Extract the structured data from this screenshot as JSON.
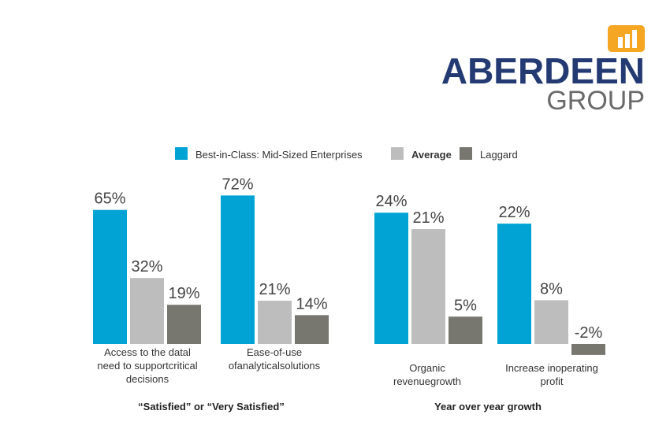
{
  "logo": {
    "name": "ABERDEEN",
    "sub": "GROUP",
    "icon": "bar-chart-icon",
    "text_color": "#243a73",
    "sub_color": "#6a6a6a",
    "accent": "#f5a623"
  },
  "legend": {
    "placement": "top-center",
    "items": [
      {
        "label": "Best-in-Class: Mid-Sized Enterprises",
        "color": "#00a3d4"
      },
      {
        "label": "Average",
        "color": "#bdbdbd"
      },
      {
        "label": "Laggard",
        "color": "#77776f"
      }
    ]
  },
  "chart_data": [
    {
      "type": "bar",
      "title": "“Satisfied” or “Very Satisfied”",
      "categories": [
        [
          "Access to the datal",
          "need to supportcritical",
          "decisions"
        ],
        [
          "Ease-of-use",
          "ofanalyticalsolutions"
        ]
      ],
      "series": [
        {
          "name": "Best-in-Class: Mid-Sized Enterprises",
          "values": [
            65,
            72
          ],
          "labels": [
            "65%",
            "72%"
          ]
        },
        {
          "name": "Average",
          "values": [
            32,
            21
          ],
          "labels": [
            "32%",
            "21%"
          ]
        },
        {
          "name": "Laggard",
          "values": [
            19,
            14
          ],
          "labels": [
            "19%",
            "14%"
          ]
        }
      ],
      "ylim": [
        0,
        75
      ],
      "grid": false
    },
    {
      "type": "bar",
      "title": "Year over year growth",
      "categories": [
        [
          "Organic",
          "revenuegrowth"
        ],
        [
          "Increase inoperating",
          "profit"
        ]
      ],
      "series": [
        {
          "name": "Best-in-Class: Mid-Sized Enterprises",
          "values": [
            24,
            22
          ],
          "labels": [
            "24%",
            "22%"
          ]
        },
        {
          "name": "Average",
          "values": [
            21,
            8
          ],
          "labels": [
            "21%",
            "8%"
          ]
        },
        {
          "name": "Laggard",
          "values": [
            5,
            -2
          ],
          "labels": [
            "5%",
            "-2%"
          ]
        }
      ],
      "ylim": [
        -3,
        25
      ],
      "grid": false
    }
  ]
}
